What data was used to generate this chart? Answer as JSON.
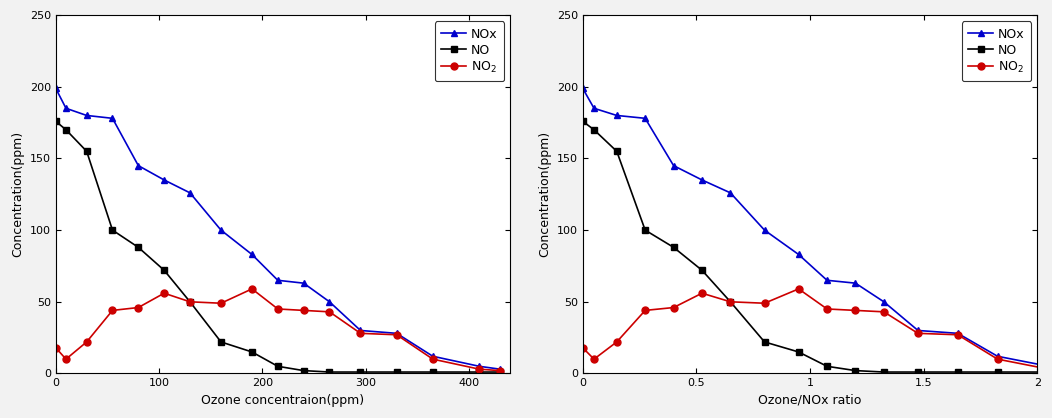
{
  "left": {
    "xlabel": "Ozone concentraion(ppm)",
    "ylabel": "Concentration(ppm)",
    "xlim": [
      0,
      440
    ],
    "ylim": [
      0,
      250
    ],
    "xticks": [
      0,
      100,
      200,
      300,
      400
    ],
    "yticks": [
      0,
      50,
      100,
      150,
      200,
      250
    ],
    "NOx_x": [
      0,
      10,
      30,
      55,
      80,
      105,
      130,
      160,
      190,
      215,
      240,
      265,
      295,
      330,
      365,
      410,
      430
    ],
    "NOx_y": [
      199,
      185,
      180,
      178,
      145,
      135,
      126,
      100,
      83,
      65,
      63,
      50,
      30,
      28,
      12,
      5,
      3
    ],
    "NO_x": [
      0,
      10,
      30,
      55,
      80,
      105,
      130,
      160,
      190,
      215,
      240,
      265,
      295,
      330,
      365,
      410,
      430
    ],
    "NO_y": [
      176,
      170,
      155,
      100,
      88,
      72,
      50,
      22,
      15,
      5,
      2,
      1,
      1,
      1,
      1,
      1,
      1
    ],
    "NO2_x": [
      0,
      10,
      30,
      55,
      80,
      105,
      130,
      160,
      190,
      215,
      240,
      265,
      295,
      330,
      365,
      410,
      430
    ],
    "NO2_y": [
      18,
      10,
      22,
      44,
      46,
      56,
      50,
      49,
      59,
      45,
      44,
      43,
      28,
      27,
      10,
      3,
      2
    ]
  },
  "right": {
    "xlabel": "Ozone/NOx ratio",
    "ylabel": "Concentration(ppm)",
    "xlim": [
      0,
      2.0
    ],
    "ylim": [
      0,
      250
    ],
    "xticks": [
      0,
      0.5,
      1.0,
      1.5,
      2.0
    ],
    "xticklabels": [
      "0",
      "0.5",
      "1",
      "1.5",
      "2"
    ],
    "yticks": [
      0,
      50,
      100,
      150,
      200,
      250
    ],
    "NOx_x": [
      0,
      0.05,
      0.15,
      0.275,
      0.4,
      0.525,
      0.65,
      0.8,
      0.95,
      1.075,
      1.2,
      1.325,
      1.475,
      1.65,
      1.825,
      2.05,
      2.15
    ],
    "NOx_y": [
      199,
      185,
      180,
      178,
      145,
      135,
      126,
      100,
      83,
      65,
      63,
      50,
      30,
      28,
      12,
      5,
      3
    ],
    "NO_x": [
      0,
      0.05,
      0.15,
      0.275,
      0.4,
      0.525,
      0.65,
      0.8,
      0.95,
      1.075,
      1.2,
      1.325,
      1.475,
      1.65,
      1.825,
      2.05,
      2.15
    ],
    "NO_y": [
      176,
      170,
      155,
      100,
      88,
      72,
      50,
      22,
      15,
      5,
      2,
      1,
      1,
      1,
      1,
      1,
      1
    ],
    "NO2_x": [
      0,
      0.05,
      0.15,
      0.275,
      0.4,
      0.525,
      0.65,
      0.8,
      0.95,
      1.075,
      1.2,
      1.325,
      1.475,
      1.65,
      1.825,
      2.05,
      2.15
    ],
    "NO2_y": [
      18,
      10,
      22,
      44,
      46,
      56,
      50,
      49,
      59,
      45,
      44,
      43,
      28,
      27,
      10,
      3,
      2
    ]
  },
  "NOx_color": "#0000cc",
  "NO_color": "#000000",
  "NO2_color": "#cc0000",
  "bg_color": "#ffffff",
  "fig_bg_color": "#f2f2f2",
  "legend_NOx": "NOx",
  "legend_NO": "NO",
  "legend_NO2": "NO$_2$",
  "marker_NOx": "^",
  "marker_NO": "s",
  "marker_NO2": "o",
  "markersize": 5,
  "linewidth": 1.2,
  "fontsize_label": 9,
  "fontsize_tick": 8,
  "fontsize_legend": 9
}
